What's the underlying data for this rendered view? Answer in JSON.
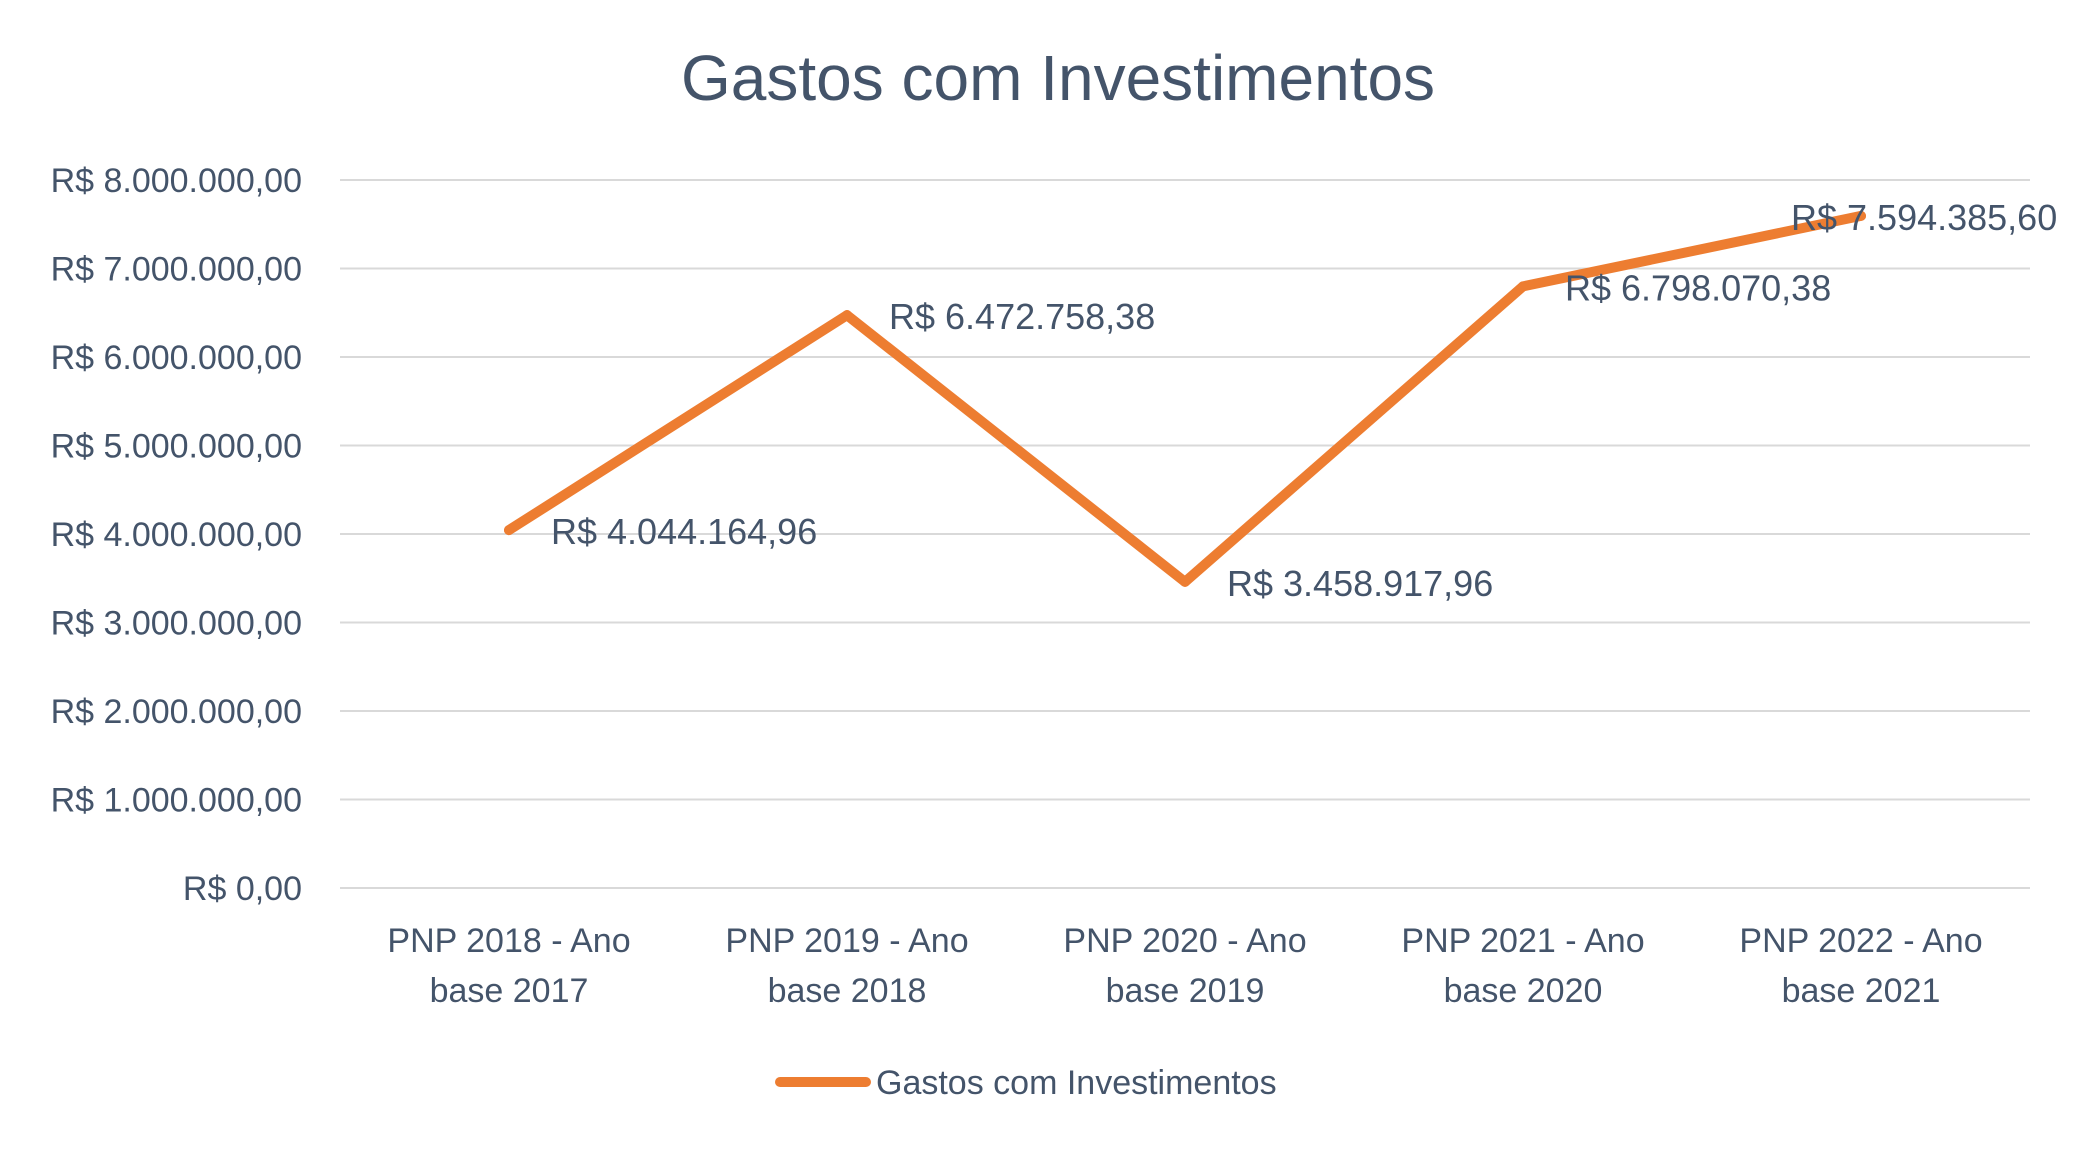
{
  "chart_data": {
    "type": "line",
    "title": "Gastos com Investimentos",
    "categories": [
      [
        "PNP 2018 - Ano",
        "base 2017"
      ],
      [
        "PNP 2019 - Ano",
        "base 2018"
      ],
      [
        "PNP 2020 - Ano",
        "base 2019"
      ],
      [
        "PNP 2021 - Ano",
        "base 2020"
      ],
      [
        "PNP 2022 - Ano",
        "base 2021"
      ]
    ],
    "series": [
      {
        "name": "Gastos com Investimentos",
        "color": "#ed7d31",
        "values": [
          4044164.96,
          6472758.38,
          3458917.96,
          6798070.38,
          7594385.6
        ],
        "labels": [
          "R$ 4.044.164,96",
          "R$ 6.472.758,38",
          "R$ 3.458.917,96",
          "R$ 6.798.070,38",
          "R$ 7.594.385,60"
        ]
      }
    ],
    "ylim": [
      0,
      8000000
    ],
    "yticks": [
      {
        "value": 0,
        "label": "R$ 0,00"
      },
      {
        "value": 1000000,
        "label": "R$ 1.000.000,00"
      },
      {
        "value": 2000000,
        "label": "R$ 2.000.000,00"
      },
      {
        "value": 3000000,
        "label": "R$ 3.000.000,00"
      },
      {
        "value": 4000000,
        "label": "R$ 4.000.000,00"
      },
      {
        "value": 5000000,
        "label": "R$ 5.000.000,00"
      },
      {
        "value": 6000000,
        "label": "R$ 6.000.000,00"
      },
      {
        "value": 7000000,
        "label": "R$ 7.000.000,00"
      },
      {
        "value": 8000000,
        "label": "R$ 8.000.000,00"
      }
    ],
    "grid": true,
    "legend": "bottom"
  }
}
